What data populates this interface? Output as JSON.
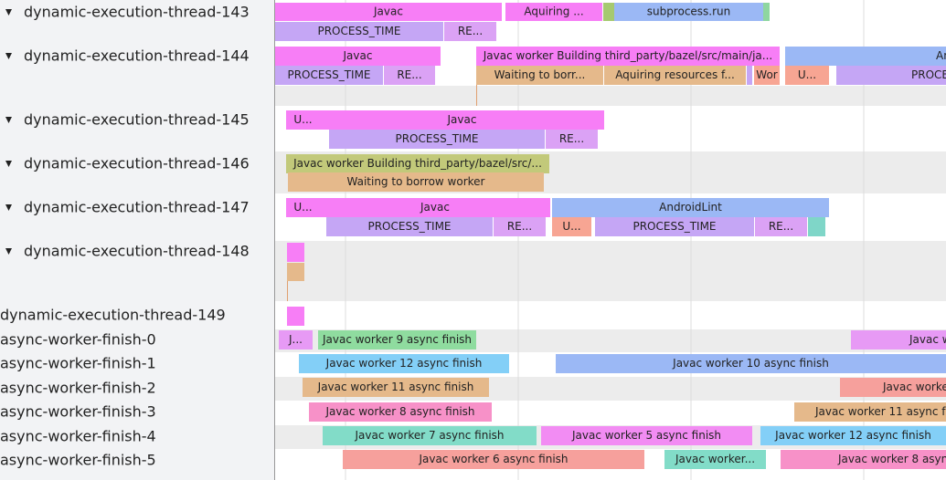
{
  "tracks": [
    {
      "name": "dynamic-execution-thread-143",
      "slices": [
        {
          "label": "Javac"
        },
        {
          "label": "Aquiring ..."
        },
        {
          "label": "subprocess.run"
        },
        {
          "label": "PROCESS_TIME"
        },
        {
          "label": "RE..."
        }
      ]
    },
    {
      "name": "dynamic-execution-thread-144",
      "slices": [
        {
          "label": "Javac"
        },
        {
          "label": "Javac worker Building third_party/bazel/src/main/ja..."
        },
        {
          "label": "An"
        },
        {
          "label": "PROCESS_TIME"
        },
        {
          "label": "RE..."
        },
        {
          "label": "Waiting to borr..."
        },
        {
          "label": "Aquiring resources f..."
        },
        {
          "label": "Wor"
        },
        {
          "label": "U..."
        },
        {
          "label": "PROCE"
        }
      ]
    },
    {
      "name": "dynamic-execution-thread-145",
      "slices": [
        {
          "label": "U..."
        },
        {
          "label": "Javac"
        },
        {
          "label": "PROCESS_TIME"
        },
        {
          "label": "RE..."
        }
      ]
    },
    {
      "name": "dynamic-execution-thread-146",
      "slices": [
        {
          "label": "Javac worker Building third_party/bazel/src/..."
        },
        {
          "label": "Waiting to borrow worker"
        }
      ]
    },
    {
      "name": "dynamic-execution-thread-147",
      "slices": [
        {
          "label": "U..."
        },
        {
          "label": "Javac"
        },
        {
          "label": "AndroidLint"
        },
        {
          "label": "PROCESS_TIME"
        },
        {
          "label": "RE..."
        },
        {
          "label": "U..."
        },
        {
          "label": "PROCESS_TIME"
        },
        {
          "label": "RE..."
        }
      ]
    },
    {
      "name": "dynamic-execution-thread-148",
      "slices": []
    },
    {
      "name": "dynamic-execution-thread-149",
      "slices": []
    },
    {
      "name": "async-worker-finish-0",
      "slices": [
        {
          "label": "J..."
        },
        {
          "label": "Javac worker 9 async finish"
        },
        {
          "label": "Javac w"
        }
      ]
    },
    {
      "name": "async-worker-finish-1",
      "slices": [
        {
          "label": "Javac worker 12 async finish"
        },
        {
          "label": "Javac worker 10 async finish"
        }
      ]
    },
    {
      "name": "async-worker-finish-2",
      "slices": [
        {
          "label": "Javac worker 11 async finish"
        },
        {
          "label": "Javac worke"
        }
      ]
    },
    {
      "name": "async-worker-finish-3",
      "slices": [
        {
          "label": "Javac worker 8 async finish"
        },
        {
          "label": "Javac worker 11 async f"
        }
      ]
    },
    {
      "name": "async-worker-finish-4",
      "slices": [
        {
          "label": "Javac worker 7 async finish"
        },
        {
          "label": "Javac worker 5 async finish"
        },
        {
          "label": "Javac worker 12 async finish"
        }
      ]
    },
    {
      "name": "async-worker-finish-5",
      "slices": [
        {
          "label": "Javac worker 6 async finish"
        },
        {
          "label": "Javac worker..."
        },
        {
          "label": "Javac worker 8 async f"
        }
      ]
    }
  ]
}
